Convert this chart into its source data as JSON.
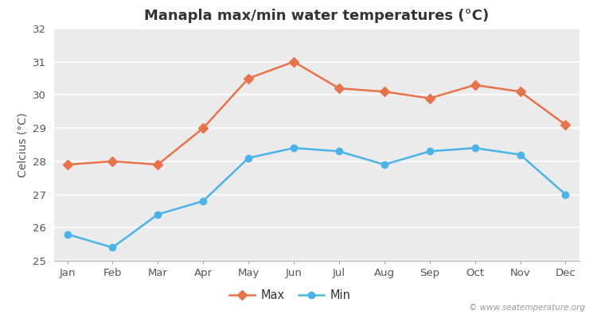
{
  "title": "Manapla max/min water temperatures (°C)",
  "ylabel": "Celcius (°C)",
  "months": [
    "Jan",
    "Feb",
    "Mar",
    "Apr",
    "May",
    "Jun",
    "Jul",
    "Aug",
    "Sep",
    "Oct",
    "Nov",
    "Dec"
  ],
  "max_values": [
    27.9,
    28.0,
    27.9,
    29.0,
    30.5,
    31.0,
    30.2,
    30.1,
    29.9,
    30.3,
    30.1,
    29.1
  ],
  "min_values": [
    25.8,
    25.4,
    26.4,
    26.8,
    28.1,
    28.4,
    28.3,
    27.9,
    28.3,
    28.4,
    28.2,
    27.0
  ],
  "max_color": "#e8724a",
  "min_color": "#4ab4e8",
  "plot_bg_color": "#ebebeb",
  "ylim": [
    25,
    32
  ],
  "yticks": [
    25,
    26,
    27,
    28,
    29,
    30,
    31,
    32
  ],
  "title_fontsize": 13,
  "axis_label_fontsize": 10,
  "tick_fontsize": 9.5,
  "legend_labels": [
    "Max",
    "Min"
  ],
  "watermark": "© www.seatemperature.org",
  "line_width": 1.8,
  "marker_size": 6
}
